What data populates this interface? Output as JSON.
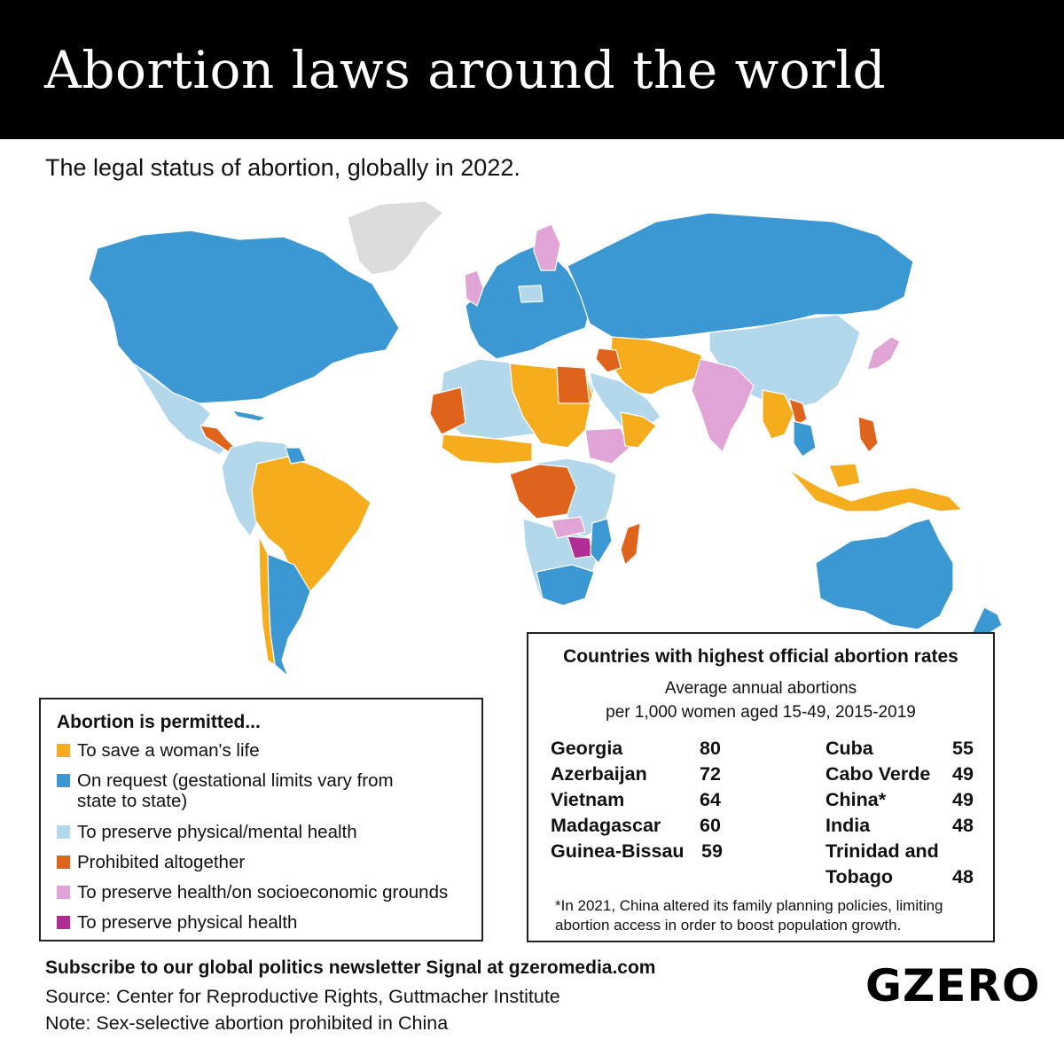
{
  "header": {
    "title": "Abortion laws around the world"
  },
  "subtitle": "The legal status of abortion, globally in 2022.",
  "colors": {
    "save_life": "#f5ad1e",
    "on_request": "#3b98d2",
    "physical_mental_health": "#b3d8ec",
    "prohibited": "#e0631c",
    "health_socioeconomic": "#e0a5d6",
    "physical_health": "#b12d93",
    "no_data": "#dcdcdc"
  },
  "legend": {
    "title": "Abortion is permitted...",
    "items": [
      {
        "label": "To save a woman's life",
        "color": "#f5ad1e"
      },
      {
        "label": "On request (gestational limits vary from state to state)",
        "color": "#3b98d2"
      },
      {
        "label": "To preserve physical/mental health",
        "color": "#b3d8ec"
      },
      {
        "label": "Prohibited altogether",
        "color": "#e0631c"
      },
      {
        "label": "To preserve health/on socioeconomic grounds",
        "color": "#e0a5d6"
      },
      {
        "label": "To preserve physical health",
        "color": "#b12d93"
      }
    ]
  },
  "rates": {
    "title": "Countries with highest official abortion rates",
    "subtitle_line1": "Average annual abortions",
    "subtitle_line2": "per 1,000 women aged 15-49, 2015-2019",
    "left": [
      {
        "country": "Georgia",
        "value": "80"
      },
      {
        "country": "Azerbaijan",
        "value": "72"
      },
      {
        "country": "Vietnam",
        "value": "64"
      },
      {
        "country": "Madagascar",
        "value": "60"
      },
      {
        "country": "Guinea-Bissau",
        "value": "59"
      }
    ],
    "right": [
      {
        "country": "Cuba",
        "value": "55"
      },
      {
        "country": "Cabo Verde",
        "value": "49"
      },
      {
        "country": "China*",
        "value": "49"
      },
      {
        "country": "India",
        "value": "48"
      },
      {
        "country": "Trinidad and Tobago",
        "value": "48"
      }
    ],
    "note": "*In 2021, China altered its family planning policies, limiting abortion access in order to boost population growth."
  },
  "footer": {
    "subscribe": "Subscribe to our global politics newsletter Signal at gzeromedia.com",
    "source": "Source: Center for Reproductive Rights, Guttmacher Institute",
    "note": "Note: Sex-selective abortion prohibited in China"
  },
  "logo": "GZERO"
}
